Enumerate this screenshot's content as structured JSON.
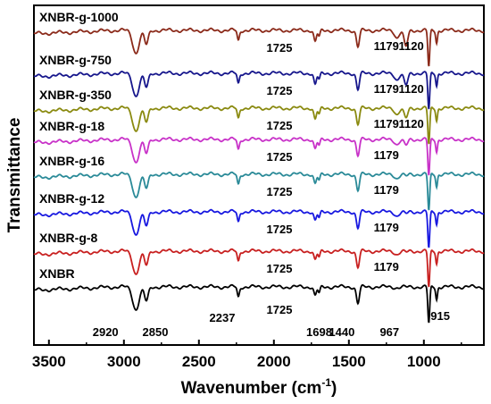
{
  "chart_data": {
    "type": "line",
    "xlabel": "Wavenumber (cm",
    "xlabel_sup": "-1",
    "xlabel_close": ")",
    "ylabel": "Transmittance",
    "xlim": [
      3600,
      600
    ],
    "x_reversed": true,
    "y_ticks_shown": false,
    "grid": false,
    "x_ticks": [
      3500,
      3000,
      2500,
      2000,
      1500,
      1000
    ],
    "x_tick_labels": [
      "3500",
      "3000",
      "2500",
      "2000",
      "1500",
      "1000"
    ],
    "peaks": [
      {
        "x": 2920,
        "depth": 0.55,
        "w": 30
      },
      {
        "x": 2850,
        "depth": 0.35,
        "w": 18
      },
      {
        "x": 2237,
        "depth": 0.25,
        "w": 10
      },
      {
        "x": 1725,
        "depth": 0.22,
        "w": 12
      },
      {
        "x": 1698,
        "depth": 0.16,
        "w": 10
      },
      {
        "x": 1440,
        "depth": 0.4,
        "w": 14
      },
      {
        "x": 1179,
        "depth": 0.1,
        "w": 20
      },
      {
        "x": 1120,
        "depth": 0.1,
        "w": 18
      },
      {
        "x": 967,
        "depth": 0.9,
        "w": 9
      },
      {
        "x": 915,
        "depth": 0.3,
        "w": 8
      }
    ],
    "series": [
      {
        "name": "XNBR-g-1000",
        "color": "#8b2a1a",
        "peak_scale": {
          "1725": 1.3,
          "1179": 1.8,
          "1120": 4.0
        }
      },
      {
        "name": "XNBR-g-750",
        "color": "#16168c",
        "peak_scale": {
          "1725": 1.3,
          "1179": 1.6,
          "1120": 3.0
        }
      },
      {
        "name": "XNBR-g-350",
        "color": "#8a8a10",
        "peak_scale": {
          "1725": 1.3,
          "1179": 1.5,
          "1120": 2.5
        }
      },
      {
        "name": "XNBR-g-18",
        "color": "#c832c8",
        "peak_scale": {
          "1725": 1.1,
          "1179": 1.2,
          "1120": 1.5
        }
      },
      {
        "name": "XNBR-g-16",
        "color": "#2a8a98",
        "peak_scale": {
          "1725": 1.1,
          "1179": 1.0,
          "1120": 0.5
        }
      },
      {
        "name": "XNBR-g-12",
        "color": "#1818e0",
        "peak_scale": {
          "1725": 1.0,
          "1179": 1.0,
          "1120": 0.5
        }
      },
      {
        "name": "XNBR-g-8",
        "color": "#c82020",
        "peak_scale": {
          "1725": 1.0,
          "1179": 0.8,
          "1120": 0.3
        }
      },
      {
        "name": "XNBR",
        "color": "#000000",
        "peak_scale": {
          "1725": 1.0,
          "1179": 0.2,
          "1120": 0.1
        }
      }
    ],
    "annotations": [
      {
        "text": "1725",
        "series": "XNBR-g-1000"
      },
      {
        "text": "1179",
        "series": "XNBR-g-1000"
      },
      {
        "text": "1120",
        "series": "XNBR-g-1000"
      },
      {
        "text": "1725",
        "series": "XNBR-g-750"
      },
      {
        "text": "1179",
        "series": "XNBR-g-750"
      },
      {
        "text": "1120",
        "series": "XNBR-g-750"
      },
      {
        "text": "1725",
        "series": "XNBR-g-350"
      },
      {
        "text": "1179",
        "series": "XNBR-g-350"
      },
      {
        "text": "1120",
        "series": "XNBR-g-350"
      },
      {
        "text": "1725",
        "series": "XNBR-g-18"
      },
      {
        "text": "1179",
        "series": "XNBR-g-18"
      },
      {
        "text": "1725",
        "series": "XNBR-g-16"
      },
      {
        "text": "1179",
        "series": "XNBR-g-16"
      },
      {
        "text": "1725",
        "series": "XNBR-g-12"
      },
      {
        "text": "1179",
        "series": "XNBR-g-12"
      },
      {
        "text": "1725",
        "series": "XNBR-g-8"
      },
      {
        "text": "1179",
        "series": "XNBR-g-8"
      },
      {
        "text": "2920",
        "series": "XNBR"
      },
      {
        "text": "2850",
        "series": "XNBR"
      },
      {
        "text": "2237",
        "series": "XNBR"
      },
      {
        "text": "1725",
        "series": "XNBR"
      },
      {
        "text": "1698",
        "series": "XNBR"
      },
      {
        "text": "1440",
        "series": "XNBR"
      },
      {
        "text": "967",
        "series": "XNBR"
      },
      {
        "text": "915",
        "series": "XNBR"
      }
    ]
  }
}
